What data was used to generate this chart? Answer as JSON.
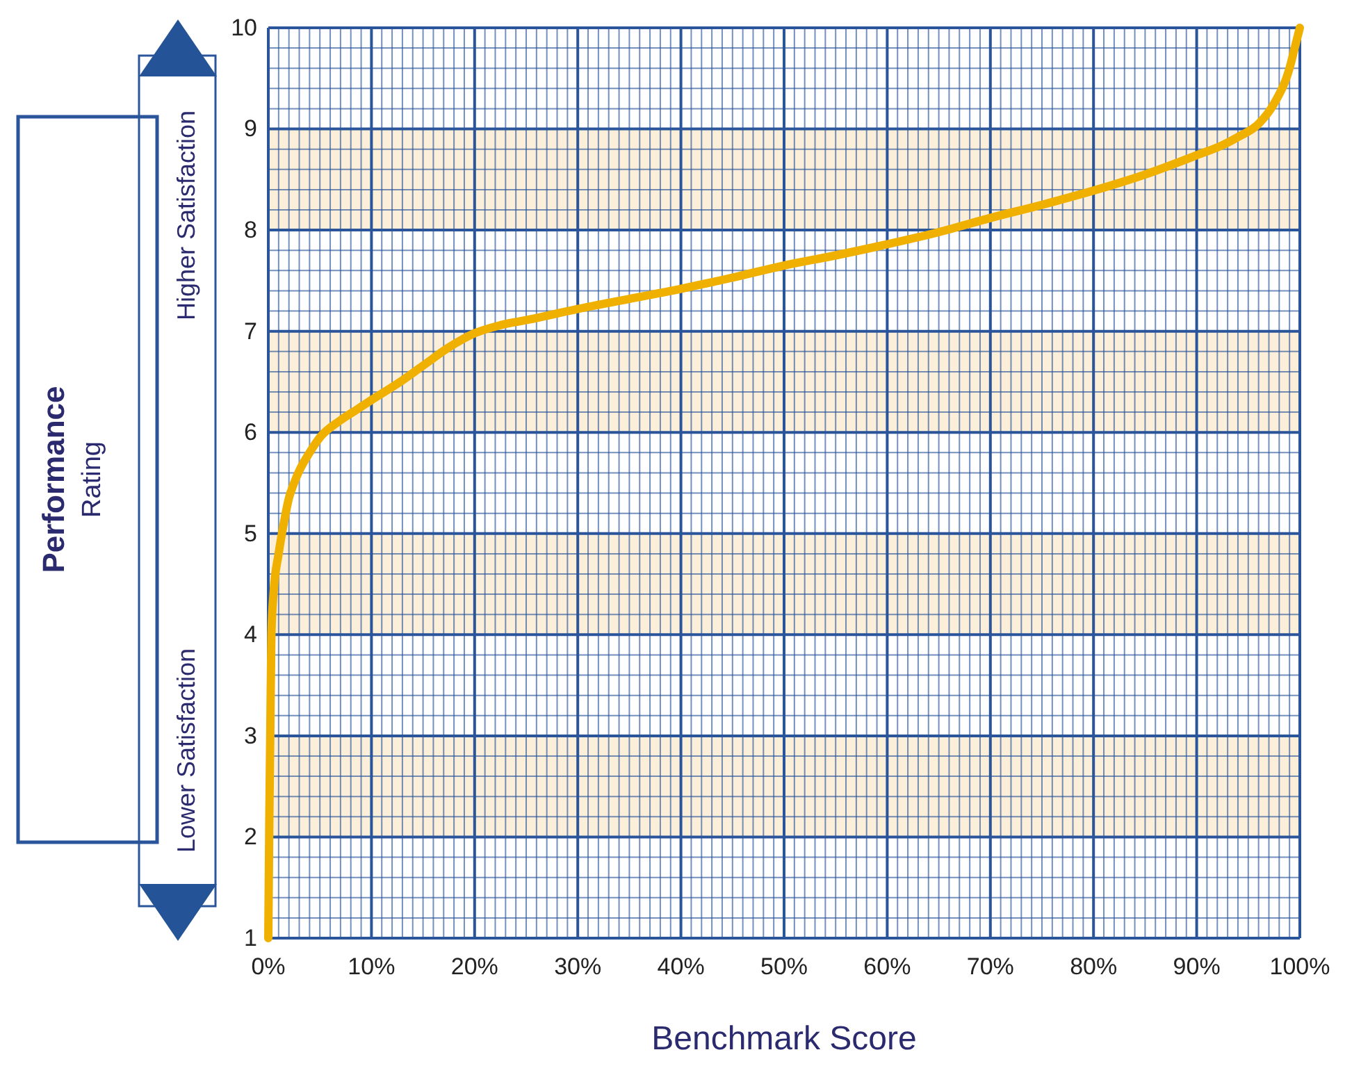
{
  "chart_data": {
    "type": "line",
    "xlabel": "Benchmark Score",
    "ylabel": "Performance Rating",
    "annotations": [
      "Higher Satisfaction",
      "Lower Satisfaction"
    ],
    "x": [
      0,
      0.1,
      0.2,
      0.3,
      0.5,
      1,
      1.5,
      2,
      2.5,
      3,
      4,
      5,
      7,
      8.5,
      10,
      12.5,
      15,
      17.5,
      20,
      22.5,
      25,
      30,
      35,
      40,
      45,
      50,
      55,
      60,
      65,
      70,
      75,
      80,
      85,
      90,
      92.5,
      94,
      96,
      97.5,
      99,
      99.5,
      100
    ],
    "series": [
      {
        "color": "#f0b000",
        "values": [
          1,
          2.2,
          3.1,
          4,
          4.4,
          4.8,
          5.1,
          5.35,
          5.5,
          5.62,
          5.8,
          5.95,
          6.12,
          6.22,
          6.32,
          6.48,
          6.66,
          6.84,
          6.98,
          7.06,
          7.11,
          7.22,
          7.32,
          7.42,
          7.53,
          7.65,
          7.75,
          7.86,
          7.98,
          8.12,
          8.25,
          8.39,
          8.55,
          8.74,
          8.84,
          8.92,
          9.05,
          9.25,
          9.6,
          9.8,
          10
        ]
      }
    ],
    "bands": [
      {
        "axis": "y",
        "from": 2,
        "to": 3,
        "color": "#fcefd9"
      },
      {
        "axis": "y",
        "from": 4,
        "to": 5,
        "color": "#fcefd9"
      },
      {
        "axis": "y",
        "from": 6,
        "to": 7,
        "color": "#fcefd9"
      },
      {
        "axis": "y",
        "from": 8,
        "to": 9,
        "color": "#fcefd9"
      }
    ],
    "xlim": [
      0,
      100
    ],
    "ylim": [
      1,
      10
    ],
    "xticks": [
      {
        "value": 0,
        "label": "0%"
      },
      {
        "value": 1,
        "label": null
      },
      {
        "value": 2,
        "label": null
      },
      {
        "value": 3,
        "label": null
      },
      {
        "value": 4,
        "label": null
      },
      {
        "value": 5,
        "label": null
      },
      {
        "value": 6,
        "label": null
      },
      {
        "value": 7,
        "label": null
      },
      {
        "value": 8,
        "label": null
      },
      {
        "value": 9,
        "label": null
      },
      {
        "value": 10,
        "label": "10%"
      },
      {
        "value": 11,
        "label": null
      },
      {
        "value": 12,
        "label": null
      },
      {
        "value": 13,
        "label": null
      },
      {
        "value": 14,
        "label": null
      },
      {
        "value": 15,
        "label": null
      },
      {
        "value": 16,
        "label": null
      },
      {
        "value": 17,
        "label": null
      },
      {
        "value": 18,
        "label": null
      },
      {
        "value": 19,
        "label": null
      },
      {
        "value": 20,
        "label": "20%"
      },
      {
        "value": 21,
        "label": null
      },
      {
        "value": 22,
        "label": null
      },
      {
        "value": 23,
        "label": null
      },
      {
        "value": 24,
        "label": null
      },
      {
        "value": 25,
        "label": null
      },
      {
        "value": 26,
        "label": null
      },
      {
        "value": 27,
        "label": null
      },
      {
        "value": 28,
        "label": null
      },
      {
        "value": 29,
        "label": null
      },
      {
        "value": 30,
        "label": "30%"
      },
      {
        "value": 31,
        "label": null
      },
      {
        "value": 32,
        "label": null
      },
      {
        "value": 33,
        "label": null
      },
      {
        "value": 34,
        "label": null
      },
      {
        "value": 35,
        "label": null
      },
      {
        "value": 36,
        "label": null
      },
      {
        "value": 37,
        "label": null
      },
      {
        "value": 38,
        "label": null
      },
      {
        "value": 39,
        "label": null
      },
      {
        "value": 40,
        "label": "40%"
      },
      {
        "value": 41,
        "label": null
      },
      {
        "value": 42,
        "label": null
      },
      {
        "value": 43,
        "label": null
      },
      {
        "value": 44,
        "label": null
      },
      {
        "value": 45,
        "label": null
      },
      {
        "value": 46,
        "label": null
      },
      {
        "value": 47,
        "label": null
      },
      {
        "value": 48,
        "label": null
      },
      {
        "value": 49,
        "label": null
      },
      {
        "value": 50,
        "label": "50%"
      },
      {
        "value": 51,
        "label": null
      },
      {
        "value": 52,
        "label": null
      },
      {
        "value": 53,
        "label": null
      },
      {
        "value": 54,
        "label": null
      },
      {
        "value": 55,
        "label": null
      },
      {
        "value": 56,
        "label": null
      },
      {
        "value": 57,
        "label": null
      },
      {
        "value": 58,
        "label": null
      },
      {
        "value": 59,
        "label": null
      },
      {
        "value": 60,
        "label": "60%"
      },
      {
        "value": 61,
        "label": null
      },
      {
        "value": 62,
        "label": null
      },
      {
        "value": 63,
        "label": null
      },
      {
        "value": 64,
        "label": null
      },
      {
        "value": 65,
        "label": null
      },
      {
        "value": 66,
        "label": null
      },
      {
        "value": 67,
        "label": null
      },
      {
        "value": 68,
        "label": null
      },
      {
        "value": 69,
        "label": null
      },
      {
        "value": 70,
        "label": "70%"
      },
      {
        "value": 71,
        "label": null
      },
      {
        "value": 72,
        "label": null
      },
      {
        "value": 73,
        "label": null
      },
      {
        "value": 74,
        "label": null
      },
      {
        "value": 75,
        "label": null
      },
      {
        "value": 76,
        "label": null
      },
      {
        "value": 77,
        "label": null
      },
      {
        "value": 78,
        "label": null
      },
      {
        "value": 79,
        "label": null
      },
      {
        "value": 80,
        "label": "80%"
      },
      {
        "value": 81,
        "label": null
      },
      {
        "value": 82,
        "label": null
      },
      {
        "value": 83,
        "label": null
      },
      {
        "value": 84,
        "label": null
      },
      {
        "value": 85,
        "label": null
      },
      {
        "value": 86,
        "label": null
      },
      {
        "value": 87,
        "label": null
      },
      {
        "value": 88,
        "label": null
      },
      {
        "value": 89,
        "label": null
      },
      {
        "value": 90,
        "label": "90%"
      },
      {
        "value": 91,
        "label": null
      },
      {
        "value": 92,
        "label": null
      },
      {
        "value": 93,
        "label": null
      },
      {
        "value": 94,
        "label": null
      },
      {
        "value": 95,
        "label": null
      },
      {
        "value": 96,
        "label": null
      },
      {
        "value": 97,
        "label": null
      },
      {
        "value": 98,
        "label": null
      },
      {
        "value": 99,
        "label": null
      },
      {
        "value": 100,
        "label": "100%"
      }
    ],
    "yticks": [
      1,
      {
        "value": 1.2,
        "label": null
      },
      {
        "value": 1.4,
        "label": null
      },
      {
        "value": 1.6,
        "label": null
      },
      {
        "value": 1.8,
        "label": null
      },
      2,
      {
        "value": 2.2,
        "label": null
      },
      {
        "value": 2.4,
        "label": null
      },
      {
        "value": 2.6,
        "label": null
      },
      {
        "value": 2.8,
        "label": null
      },
      3,
      {
        "value": 3.2,
        "label": null
      },
      {
        "value": 3.4,
        "label": null
      },
      {
        "value": 3.6,
        "label": null
      },
      {
        "value": 3.8,
        "label": null
      },
      4,
      {
        "value": 4.2,
        "label": null
      },
      {
        "value": 4.4,
        "label": null
      },
      {
        "value": 4.6,
        "label": null
      },
      {
        "value": 4.8,
        "label": null
      },
      5,
      {
        "value": 5.2,
        "label": null
      },
      {
        "value": 5.4,
        "label": null
      },
      {
        "value": 5.6,
        "label": null
      },
      {
        "value": 5.8,
        "label": null
      },
      6,
      {
        "value": 6.2,
        "label": null
      },
      {
        "value": 6.4,
        "label": null
      },
      {
        "value": 6.6,
        "label": null
      },
      {
        "value": 6.8,
        "label": null
      },
      7,
      {
        "value": 7.2,
        "label": null
      },
      {
        "value": 7.4,
        "label": null
      },
      {
        "value": 7.6,
        "label": null
      },
      {
        "value": 7.8,
        "label": null
      },
      8,
      {
        "value": 8.2,
        "label": null
      },
      {
        "value": 8.4,
        "label": null
      },
      {
        "value": 8.6,
        "label": null
      },
      {
        "value": 8.8,
        "label": null
      },
      9,
      {
        "value": 9.2,
        "label": null
      },
      {
        "value": 9.4,
        "label": null
      },
      {
        "value": 9.6,
        "label": null
      },
      {
        "value": 9.8,
        "label": null
      },
      10
    ],
    "grid": true
  }
}
